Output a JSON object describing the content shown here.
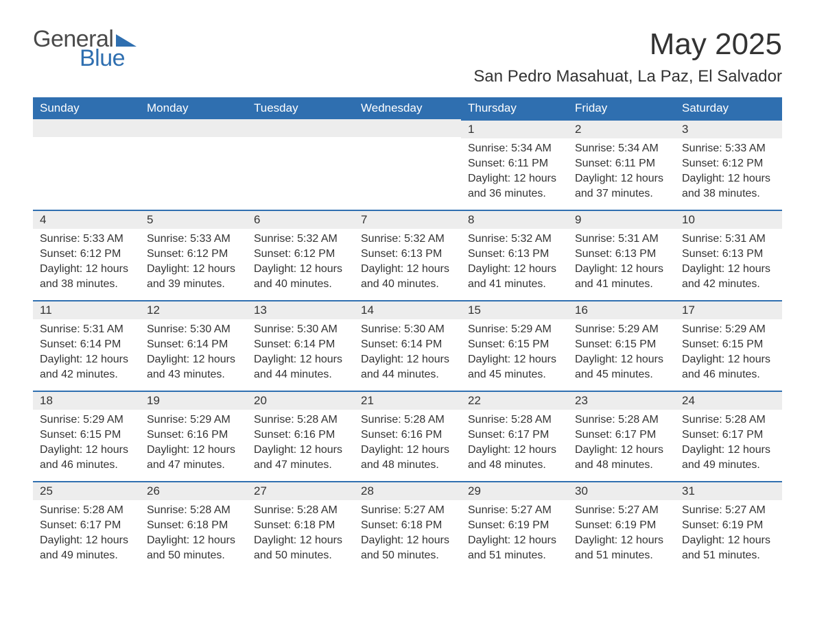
{
  "brand": {
    "part1": "General",
    "part2": "Blue",
    "icon_color": "#2f6fb0",
    "text1_color": "#4a4a4a"
  },
  "title": "May 2025",
  "location": "San Pedro Masahuat, La Paz, El Salvador",
  "colors": {
    "header_bg": "#2f6fb0",
    "header_text": "#ffffff",
    "daynum_bg": "#ededed",
    "daynum_border": "#2f6fb0",
    "body_text": "#333333",
    "page_bg": "#ffffff"
  },
  "fonts": {
    "title_size_pt": 33,
    "location_size_pt": 18,
    "dayheader_size_pt": 13,
    "body_size_pt": 12
  },
  "day_headers": [
    "Sunday",
    "Monday",
    "Tuesday",
    "Wednesday",
    "Thursday",
    "Friday",
    "Saturday"
  ],
  "weeks": [
    [
      {
        "day": "",
        "sunrise": "",
        "sunset": "",
        "daylight": ""
      },
      {
        "day": "",
        "sunrise": "",
        "sunset": "",
        "daylight": ""
      },
      {
        "day": "",
        "sunrise": "",
        "sunset": "",
        "daylight": ""
      },
      {
        "day": "",
        "sunrise": "",
        "sunset": "",
        "daylight": ""
      },
      {
        "day": "1",
        "sunrise": "Sunrise: 5:34 AM",
        "sunset": "Sunset: 6:11 PM",
        "daylight": "Daylight: 12 hours and 36 minutes."
      },
      {
        "day": "2",
        "sunrise": "Sunrise: 5:34 AM",
        "sunset": "Sunset: 6:11 PM",
        "daylight": "Daylight: 12 hours and 37 minutes."
      },
      {
        "day": "3",
        "sunrise": "Sunrise: 5:33 AM",
        "sunset": "Sunset: 6:12 PM",
        "daylight": "Daylight: 12 hours and 38 minutes."
      }
    ],
    [
      {
        "day": "4",
        "sunrise": "Sunrise: 5:33 AM",
        "sunset": "Sunset: 6:12 PM",
        "daylight": "Daylight: 12 hours and 38 minutes."
      },
      {
        "day": "5",
        "sunrise": "Sunrise: 5:33 AM",
        "sunset": "Sunset: 6:12 PM",
        "daylight": "Daylight: 12 hours and 39 minutes."
      },
      {
        "day": "6",
        "sunrise": "Sunrise: 5:32 AM",
        "sunset": "Sunset: 6:12 PM",
        "daylight": "Daylight: 12 hours and 40 minutes."
      },
      {
        "day": "7",
        "sunrise": "Sunrise: 5:32 AM",
        "sunset": "Sunset: 6:13 PM",
        "daylight": "Daylight: 12 hours and 40 minutes."
      },
      {
        "day": "8",
        "sunrise": "Sunrise: 5:32 AM",
        "sunset": "Sunset: 6:13 PM",
        "daylight": "Daylight: 12 hours and 41 minutes."
      },
      {
        "day": "9",
        "sunrise": "Sunrise: 5:31 AM",
        "sunset": "Sunset: 6:13 PM",
        "daylight": "Daylight: 12 hours and 41 minutes."
      },
      {
        "day": "10",
        "sunrise": "Sunrise: 5:31 AM",
        "sunset": "Sunset: 6:13 PM",
        "daylight": "Daylight: 12 hours and 42 minutes."
      }
    ],
    [
      {
        "day": "11",
        "sunrise": "Sunrise: 5:31 AM",
        "sunset": "Sunset: 6:14 PM",
        "daylight": "Daylight: 12 hours and 42 minutes."
      },
      {
        "day": "12",
        "sunrise": "Sunrise: 5:30 AM",
        "sunset": "Sunset: 6:14 PM",
        "daylight": "Daylight: 12 hours and 43 minutes."
      },
      {
        "day": "13",
        "sunrise": "Sunrise: 5:30 AM",
        "sunset": "Sunset: 6:14 PM",
        "daylight": "Daylight: 12 hours and 44 minutes."
      },
      {
        "day": "14",
        "sunrise": "Sunrise: 5:30 AM",
        "sunset": "Sunset: 6:14 PM",
        "daylight": "Daylight: 12 hours and 44 minutes."
      },
      {
        "day": "15",
        "sunrise": "Sunrise: 5:29 AM",
        "sunset": "Sunset: 6:15 PM",
        "daylight": "Daylight: 12 hours and 45 minutes."
      },
      {
        "day": "16",
        "sunrise": "Sunrise: 5:29 AM",
        "sunset": "Sunset: 6:15 PM",
        "daylight": "Daylight: 12 hours and 45 minutes."
      },
      {
        "day": "17",
        "sunrise": "Sunrise: 5:29 AM",
        "sunset": "Sunset: 6:15 PM",
        "daylight": "Daylight: 12 hours and 46 minutes."
      }
    ],
    [
      {
        "day": "18",
        "sunrise": "Sunrise: 5:29 AM",
        "sunset": "Sunset: 6:15 PM",
        "daylight": "Daylight: 12 hours and 46 minutes."
      },
      {
        "day": "19",
        "sunrise": "Sunrise: 5:29 AM",
        "sunset": "Sunset: 6:16 PM",
        "daylight": "Daylight: 12 hours and 47 minutes."
      },
      {
        "day": "20",
        "sunrise": "Sunrise: 5:28 AM",
        "sunset": "Sunset: 6:16 PM",
        "daylight": "Daylight: 12 hours and 47 minutes."
      },
      {
        "day": "21",
        "sunrise": "Sunrise: 5:28 AM",
        "sunset": "Sunset: 6:16 PM",
        "daylight": "Daylight: 12 hours and 48 minutes."
      },
      {
        "day": "22",
        "sunrise": "Sunrise: 5:28 AM",
        "sunset": "Sunset: 6:17 PM",
        "daylight": "Daylight: 12 hours and 48 minutes."
      },
      {
        "day": "23",
        "sunrise": "Sunrise: 5:28 AM",
        "sunset": "Sunset: 6:17 PM",
        "daylight": "Daylight: 12 hours and 48 minutes."
      },
      {
        "day": "24",
        "sunrise": "Sunrise: 5:28 AM",
        "sunset": "Sunset: 6:17 PM",
        "daylight": "Daylight: 12 hours and 49 minutes."
      }
    ],
    [
      {
        "day": "25",
        "sunrise": "Sunrise: 5:28 AM",
        "sunset": "Sunset: 6:17 PM",
        "daylight": "Daylight: 12 hours and 49 minutes."
      },
      {
        "day": "26",
        "sunrise": "Sunrise: 5:28 AM",
        "sunset": "Sunset: 6:18 PM",
        "daylight": "Daylight: 12 hours and 50 minutes."
      },
      {
        "day": "27",
        "sunrise": "Sunrise: 5:28 AM",
        "sunset": "Sunset: 6:18 PM",
        "daylight": "Daylight: 12 hours and 50 minutes."
      },
      {
        "day": "28",
        "sunrise": "Sunrise: 5:27 AM",
        "sunset": "Sunset: 6:18 PM",
        "daylight": "Daylight: 12 hours and 50 minutes."
      },
      {
        "day": "29",
        "sunrise": "Sunrise: 5:27 AM",
        "sunset": "Sunset: 6:19 PM",
        "daylight": "Daylight: 12 hours and 51 minutes."
      },
      {
        "day": "30",
        "sunrise": "Sunrise: 5:27 AM",
        "sunset": "Sunset: 6:19 PM",
        "daylight": "Daylight: 12 hours and 51 minutes."
      },
      {
        "day": "31",
        "sunrise": "Sunrise: 5:27 AM",
        "sunset": "Sunset: 6:19 PM",
        "daylight": "Daylight: 12 hours and 51 minutes."
      }
    ]
  ]
}
